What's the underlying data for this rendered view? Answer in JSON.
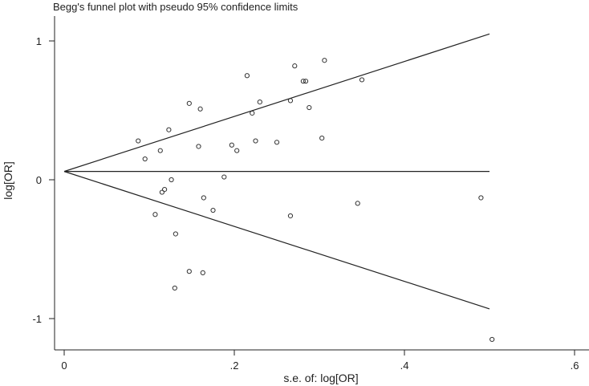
{
  "chart_data": {
    "type": "scatter",
    "title": "Begg's funnel plot with pseudo 95% confidence limits",
    "xlabel": "s.e. of: log[OR]",
    "ylabel": "log[OR]",
    "xlim": [
      -0.02,
      0.62
    ],
    "ylim": [
      -1.22,
      1.2
    ],
    "x_ticks": [
      0,
      0.2,
      0.4,
      0.6
    ],
    "x_tick_labels": [
      "0",
      ".2",
      ".4",
      ".6"
    ],
    "y_ticks": [
      -1,
      0,
      1
    ],
    "y_tick_labels": [
      "-1",
      "0",
      "1"
    ],
    "grid": false,
    "colors": {
      "line": "#222222",
      "marker": "#333333"
    },
    "pooled_estimate": 0.06,
    "confidence_limits": {
      "se_max": 0.5,
      "upper_end": 1.05,
      "lower_end": -0.93
    },
    "points": [
      {
        "x": 0.087,
        "y": 0.28
      },
      {
        "x": 0.095,
        "y": 0.15
      },
      {
        "x": 0.107,
        "y": -0.25
      },
      {
        "x": 0.113,
        "y": 0.21
      },
      {
        "x": 0.115,
        "y": -0.09
      },
      {
        "x": 0.118,
        "y": -0.07
      },
      {
        "x": 0.123,
        "y": 0.36
      },
      {
        "x": 0.126,
        "y": 0.0
      },
      {
        "x": 0.13,
        "y": -0.78
      },
      {
        "x": 0.131,
        "y": -0.39
      },
      {
        "x": 0.147,
        "y": 0.55
      },
      {
        "x": 0.147,
        "y": -0.66
      },
      {
        "x": 0.158,
        "y": 0.24
      },
      {
        "x": 0.16,
        "y": 0.51
      },
      {
        "x": 0.163,
        "y": -0.67
      },
      {
        "x": 0.164,
        "y": -0.13
      },
      {
        "x": 0.175,
        "y": -0.22
      },
      {
        "x": 0.188,
        "y": 0.02
      },
      {
        "x": 0.197,
        "y": 0.25
      },
      {
        "x": 0.203,
        "y": 0.21
      },
      {
        "x": 0.215,
        "y": 0.75
      },
      {
        "x": 0.221,
        "y": 0.48
      },
      {
        "x": 0.225,
        "y": 0.28
      },
      {
        "x": 0.23,
        "y": 0.56
      },
      {
        "x": 0.25,
        "y": 0.27
      },
      {
        "x": 0.266,
        "y": 0.57
      },
      {
        "x": 0.266,
        "y": -0.26
      },
      {
        "x": 0.271,
        "y": 0.82
      },
      {
        "x": 0.281,
        "y": 0.71
      },
      {
        "x": 0.284,
        "y": 0.71
      },
      {
        "x": 0.288,
        "y": 0.52
      },
      {
        "x": 0.303,
        "y": 0.3
      },
      {
        "x": 0.306,
        "y": 0.86
      },
      {
        "x": 0.345,
        "y": -0.17
      },
      {
        "x": 0.35,
        "y": 0.72
      },
      {
        "x": 0.49,
        "y": -0.13
      },
      {
        "x": 0.503,
        "y": -1.15
      }
    ]
  }
}
